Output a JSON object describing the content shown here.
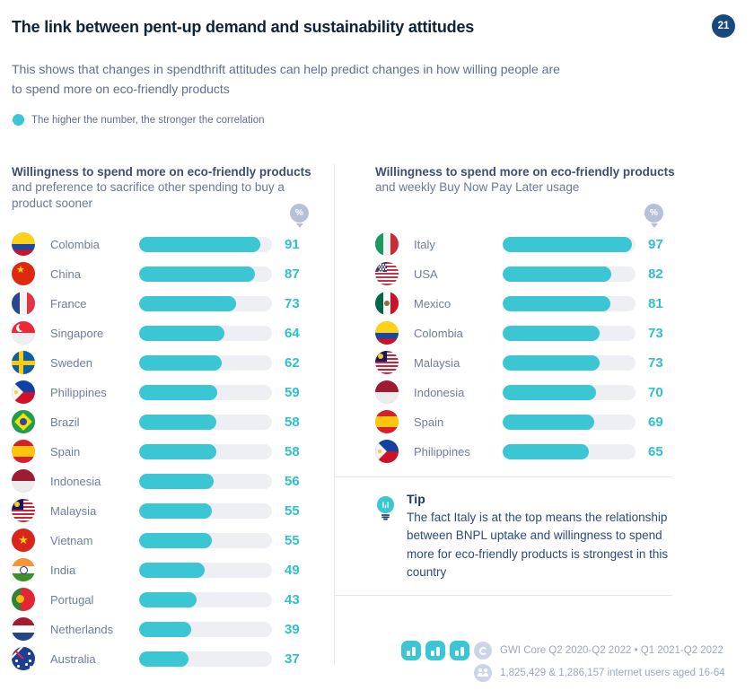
{
  "page": {
    "title": "The link between pent-up demand and sustainability attitudes",
    "page_number": "21",
    "subtitle": "This shows that changes in spendthrift attitudes can help predict changes in how willing people are to spend more on eco-friendly products",
    "legend": "The higher the number, the stronger the correlation"
  },
  "chart_data": [
    {
      "type": "bar",
      "orientation": "horizontal",
      "title_bold": "Willingness to spend more on eco-friendly products",
      "title_rest": " and preference to sacrifice other spending to buy a product sooner",
      "unit": "%",
      "xlim": [
        0,
        100
      ],
      "categories": [
        "Colombia",
        "China",
        "France",
        "Singapore",
        "Sweden",
        "Philippines",
        "Brazil",
        "Spain",
        "Indonesia",
        "Malaysia",
        "Vietnam",
        "India",
        "Portugal",
        "Netherlands",
        "Australia"
      ],
      "values": [
        91,
        87,
        73,
        64,
        62,
        59,
        58,
        58,
        56,
        55,
        55,
        49,
        43,
        39,
        37
      ]
    },
    {
      "type": "bar",
      "orientation": "horizontal",
      "title_bold": "Willingness to spend more on eco-friendly products",
      "title_rest": " and weekly Buy Now Pay Later usage",
      "unit": "%",
      "xlim": [
        0,
        100
      ],
      "categories": [
        "Italy",
        "USA",
        "Mexico",
        "Colombia",
        "Malaysia",
        "Indonesia",
        "Spain",
        "Philippines"
      ],
      "values": [
        97,
        82,
        81,
        73,
        73,
        70,
        69,
        65
      ]
    }
  ],
  "tip": {
    "label": "Tip",
    "text": "The fact Italy is at the top means the relationship between BNPL uptake and willingness to spend more for eco-friendly products is strongest in this country"
  },
  "footer": {
    "source": "GWI Core Q2 2020-Q2 2022 • Q1 2021-Q2 2022",
    "audience": "1,825,429 & 1,286,157 internet users aged 16-64"
  },
  "icons": {
    "tip": "lightbulb-icon",
    "unit": "percent-pin-icon",
    "footer": [
      "bar-chart-icon",
      "bar-chart-icon",
      "bar-chart-icon",
      "gwi-logo-icon",
      "people-icon"
    ]
  },
  "colors": {
    "accent_teal": "#3ac6d2",
    "title_navy": "#0d2339",
    "badge_navy": "#17497e",
    "bar_track": "#edeff5",
    "muted_text": "#5d6f92",
    "tip_text": "#2c4a7c",
    "footer_text": "#9aa7c4"
  }
}
